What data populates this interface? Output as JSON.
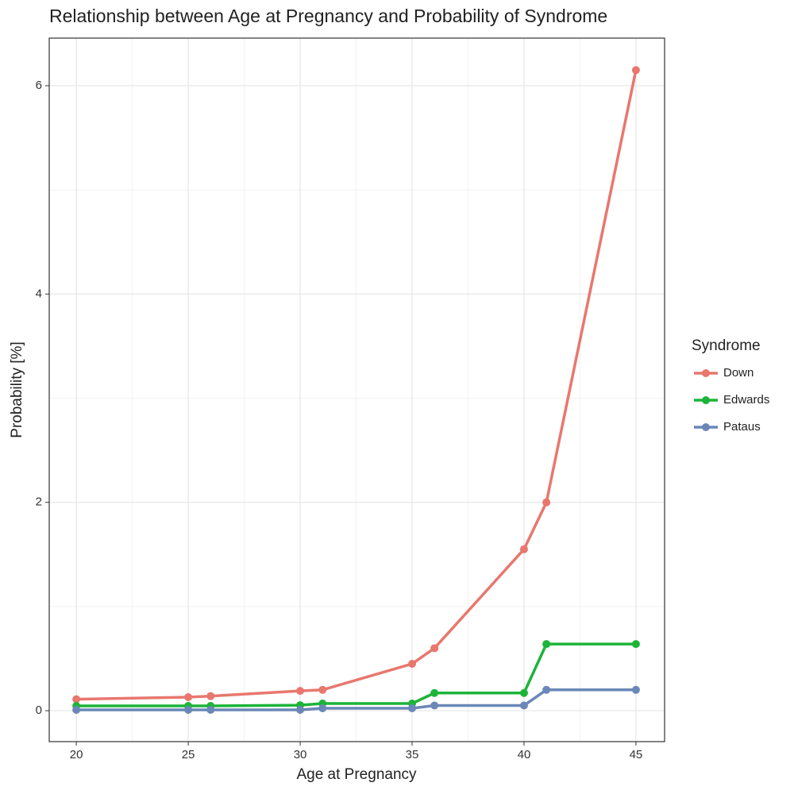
{
  "chart_data": {
    "type": "line",
    "title": "Relationship between Age at Pregnancy and Probability of Syndrome",
    "x_label": "Age at Pregnancy",
    "y_label": "Probability [%]",
    "legend_title": "Syndrome",
    "legend": "right",
    "grid": true,
    "x": [
      20,
      25,
      26,
      30,
      31,
      35,
      36,
      40,
      41,
      45
    ],
    "series": [
      {
        "name": "Down",
        "color": "#e8776e",
        "values": [
          0.11,
          0.13,
          0.14,
          0.19,
          0.2,
          0.45,
          0.6,
          1.55,
          2.0,
          6.15
        ]
      },
      {
        "name": "Edwards",
        "color": "#1db43a",
        "values": [
          0.046,
          0.046,
          0.046,
          0.053,
          0.069,
          0.069,
          0.17,
          0.17,
          0.64,
          0.64
        ]
      },
      {
        "name": "Pataus",
        "color": "#6a87b8",
        "values": [
          0.008,
          0.008,
          0.008,
          0.008,
          0.023,
          0.023,
          0.05,
          0.05,
          0.2,
          0.2
        ]
      }
    ],
    "xlim": [
      18.79,
      46.28
    ],
    "ylim": [
      -0.297,
      6.457
    ],
    "xticks": [
      20,
      25,
      30,
      35,
      40,
      45
    ],
    "yticks": [
      0,
      2,
      4,
      6
    ]
  }
}
